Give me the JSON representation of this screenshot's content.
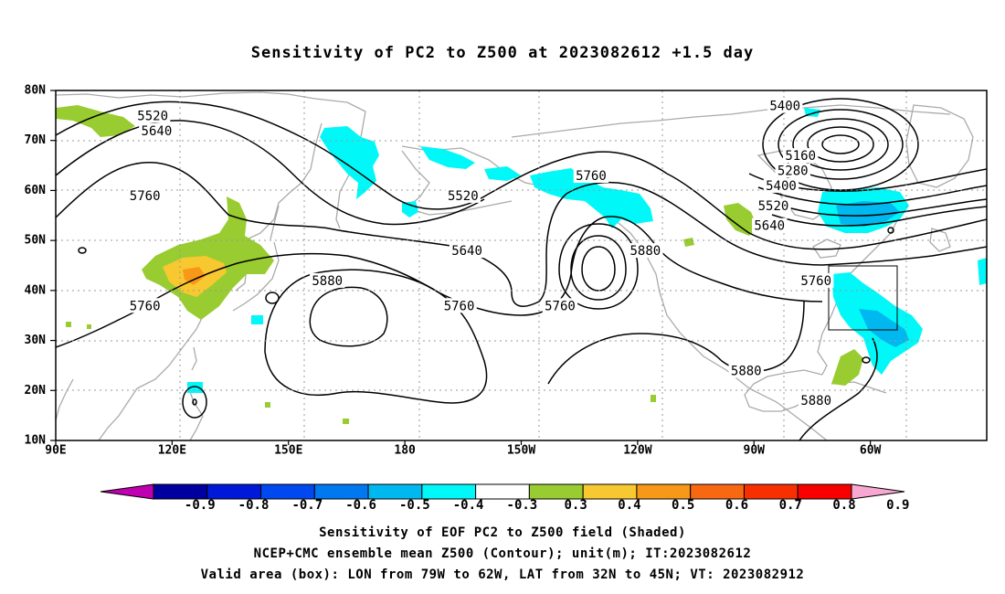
{
  "title": "Sensitivity of PC2 to Z500 at 2023082612 +1.5 day",
  "lat_labels": [
    "80N",
    "70N",
    "60N",
    "50N",
    "40N",
    "30N",
    "20N",
    "10N"
  ],
  "lon_labels": [
    "90E",
    "120E",
    "150E",
    "180",
    "150W",
    "120W",
    "90W",
    "60W"
  ],
  "contour_labels": [
    {
      "text": "5520",
      "lon": 115,
      "lat": 75
    },
    {
      "text": "5640",
      "lon": 116,
      "lat": 72
    },
    {
      "text": "5760",
      "lon": 113,
      "lat": 59
    },
    {
      "text": "5760",
      "lon": 113,
      "lat": 37
    },
    {
      "text": "5880",
      "lon": 160,
      "lat": 42
    },
    {
      "text": "5520",
      "lon": 195,
      "lat": 59
    },
    {
      "text": "5640",
      "lon": 196,
      "lat": 48
    },
    {
      "text": "5760",
      "lon": 194,
      "lat": 37
    },
    {
      "text": "5760",
      "lon": 220,
      "lat": 37
    },
    {
      "text": "5760",
      "lon": 228,
      "lat": 63
    },
    {
      "text": "5880",
      "lon": 242,
      "lat": 48
    },
    {
      "text": "5880",
      "lon": 268,
      "lat": 24
    },
    {
      "text": "5400",
      "lon": 278,
      "lat": 77
    },
    {
      "text": "5160",
      "lon": 282,
      "lat": 67
    },
    {
      "text": "5280",
      "lon": 280,
      "lat": 64
    },
    {
      "text": "5400",
      "lon": 277,
      "lat": 61
    },
    {
      "text": "5520",
      "lon": 275,
      "lat": 57
    },
    {
      "text": "5640",
      "lon": 274,
      "lat": 53
    },
    {
      "text": "5760",
      "lon": 286,
      "lat": 42
    },
    {
      "text": "5880",
      "lon": 286,
      "lat": 18
    }
  ],
  "colorbar": {
    "labels": [
      "-0.9",
      "-0.8",
      "-0.7",
      "-0.6",
      "-0.5",
      "-0.4",
      "-0.3",
      "0.3",
      "0.4",
      "0.5",
      "0.6",
      "0.7",
      "0.8",
      "0.9"
    ],
    "colors": [
      "#c000b0",
      "#0000a0",
      "#0018d8",
      "#0048f0",
      "#0078f0",
      "#00b8f0",
      "#00f8f8",
      "#ffffff",
      "#98cc30",
      "#f8c830",
      "#f89818",
      "#f86810",
      "#f83000",
      "#f80000",
      "#f8a8d0"
    ]
  },
  "captions": {
    "line1": "Sensitivity of EOF PC2 to Z500 field (Shaded)",
    "line2": "NCEP+CMC ensemble mean Z500 (Contour); unit(m); IT:2023082612",
    "line3": "Valid area (box): LON from 79W to 62W, LAT from 32N to 45N; VT: 2023082912"
  }
}
